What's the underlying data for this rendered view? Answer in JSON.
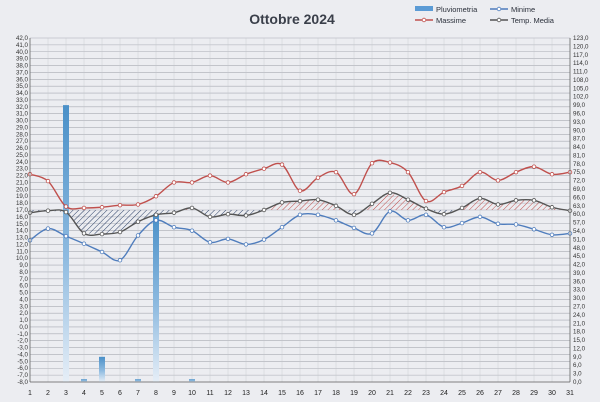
{
  "chart_data": {
    "type": "line",
    "title": "Ottobre 2024",
    "x": [
      1,
      2,
      3,
      4,
      5,
      6,
      7,
      8,
      9,
      10,
      11,
      12,
      13,
      14,
      15,
      16,
      17,
      18,
      19,
      20,
      21,
      22,
      23,
      24,
      25,
      26,
      27,
      28,
      29,
      30,
      31
    ],
    "y_left_ticks": [
      "-8,0",
      "-7,0",
      "-6,0",
      "-5,0",
      "-4,0",
      "-3,0",
      "-2,0",
      "-1,0",
      "0,0",
      "1,0",
      "2,0",
      "3,0",
      "4,0",
      "5,0",
      "6,0",
      "7,0",
      "8,0",
      "9,0",
      "10,0",
      "11,0",
      "12,0",
      "13,0",
      "14,0",
      "15,0",
      "16,0",
      "17,0",
      "18,0",
      "19,0",
      "20,0",
      "21,0",
      "22,0",
      "23,0",
      "24,0",
      "25,0",
      "26,0",
      "27,0",
      "28,0",
      "29,0",
      "30,0",
      "31,0",
      "32,0",
      "33,0",
      "34,0",
      "35,0",
      "36,0",
      "37,0",
      "38,0",
      "39,0",
      "40,0",
      "41,0",
      "42,0"
    ],
    "y_right_ticks": [
      "0,0",
      "3,0",
      "6,0",
      "9,0",
      "12,0",
      "15,0",
      "18,0",
      "21,0",
      "24,0",
      "27,0",
      "30,0",
      "33,0",
      "36,0",
      "39,0",
      "42,0",
      "45,0",
      "48,0",
      "51,0",
      "54,0",
      "57,0",
      "60,0",
      "63,0",
      "66,0",
      "69,0",
      "72,0",
      "75,0",
      "78,0",
      "81,0",
      "84,0",
      "87,0",
      "90,0",
      "93,0",
      "96,0",
      "99,0",
      "102,0",
      "105,0",
      "108,0",
      "111,0",
      "114,0",
      "117,0",
      "120,0",
      "123,0"
    ],
    "ylim_left": [
      -8,
      42
    ],
    "ylim_right": [
      0,
      123
    ],
    "grid": true,
    "legend_position": "top-right",
    "series": [
      {
        "name": "Pluviometria",
        "kind": "bar",
        "axis": "right",
        "color": "#5b9bd5",
        "values": [
          0,
          0,
          99,
          1,
          9,
          0,
          1,
          60,
          0,
          1,
          0,
          0,
          0,
          0,
          0,
          0,
          0,
          0,
          0,
          0,
          0,
          0,
          0,
          0,
          0,
          0,
          0,
          0,
          0,
          0,
          0
        ]
      },
      {
        "name": "Massime",
        "kind": "line",
        "axis": "left",
        "color": "#c0504d",
        "values": [
          22.2,
          21.2,
          17.5,
          17.3,
          17.4,
          17.7,
          17.8,
          19.0,
          21.0,
          21.0,
          22.0,
          21.0,
          22.2,
          23.0,
          23.6,
          19.8,
          21.7,
          22.5,
          19.3,
          23.8,
          23.9,
          22.5,
          18.3,
          19.6,
          20.5,
          22.5,
          21.3,
          22.5,
          23.3,
          22.2,
          22.5
        ]
      },
      {
        "name": "Minime",
        "kind": "line",
        "axis": "left",
        "color": "#4f7dbd",
        "values": [
          12.6,
          14.3,
          13.2,
          12.1,
          10.9,
          9.7,
          13.3,
          15.5,
          14.5,
          14.0,
          12.3,
          12.8,
          12.0,
          12.7,
          14.5,
          16.3,
          16.3,
          15.5,
          14.4,
          13.6,
          16.8,
          15.5,
          16.3,
          14.5,
          15.1,
          16.0,
          15.0,
          14.9,
          14.2,
          13.4,
          13.6
        ]
      },
      {
        "name": "Temp. Media",
        "kind": "line",
        "axis": "left",
        "color": "#555555",
        "values": [
          16.6,
          16.9,
          16.7,
          13.6,
          13.5,
          13.8,
          15.3,
          16.3,
          16.6,
          17.3,
          16.0,
          16.4,
          16.2,
          17.0,
          18.1,
          18.3,
          18.5,
          17.6,
          16.3,
          17.9,
          19.5,
          18.5,
          17.2,
          16.4,
          17.3,
          18.7,
          17.8,
          18.4,
          18.4,
          17.4,
          16.9
        ]
      }
    ]
  }
}
